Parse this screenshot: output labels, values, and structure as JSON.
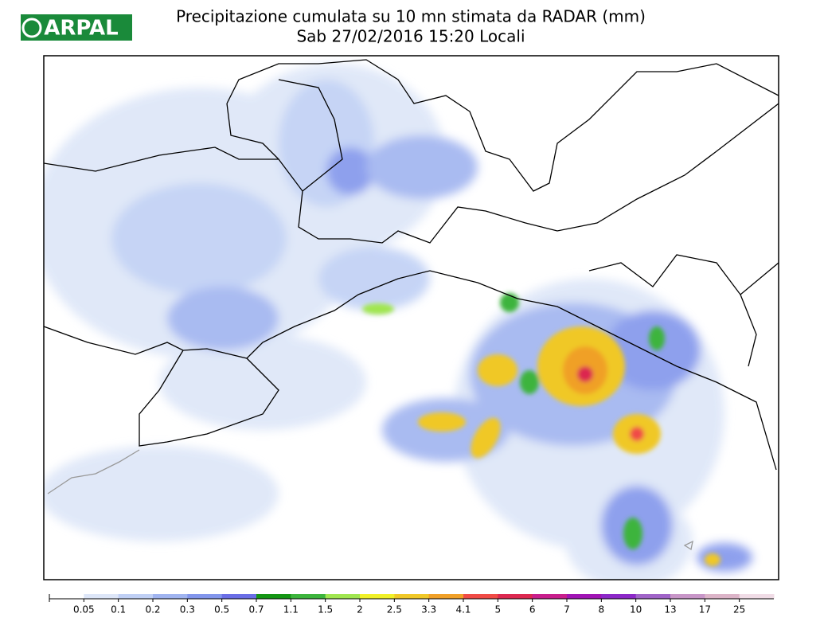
{
  "header": {
    "logo": "ARPAL",
    "title": "Precipitazione cumulata su 10 mn stimata da RADAR (mm)",
    "subtitle": "Sab 27/02/2016 15:20 Locali"
  },
  "colorbar": {
    "labels": [
      0.05,
      0.1,
      0.2,
      0.3,
      0.5,
      0.7,
      1.1,
      1.5,
      2,
      2.5,
      3.3,
      4.1,
      5,
      6,
      7,
      8,
      10,
      13,
      17,
      25
    ],
    "colors": [
      "#ffffff",
      "#dde6f8",
      "#c0d0f5",
      "#a0b4f0",
      "#8296ec",
      "#6a6ee6",
      "#149614",
      "#3cb43c",
      "#a0e650",
      "#f0f028",
      "#f0c828",
      "#f0a028",
      "#f04b46",
      "#dc2850",
      "#c81e8c",
      "#a014b4",
      "#8c28c8",
      "#a064c8",
      "#c896c8",
      "#dcb4c8",
      "#f0dce6"
    ]
  }
}
